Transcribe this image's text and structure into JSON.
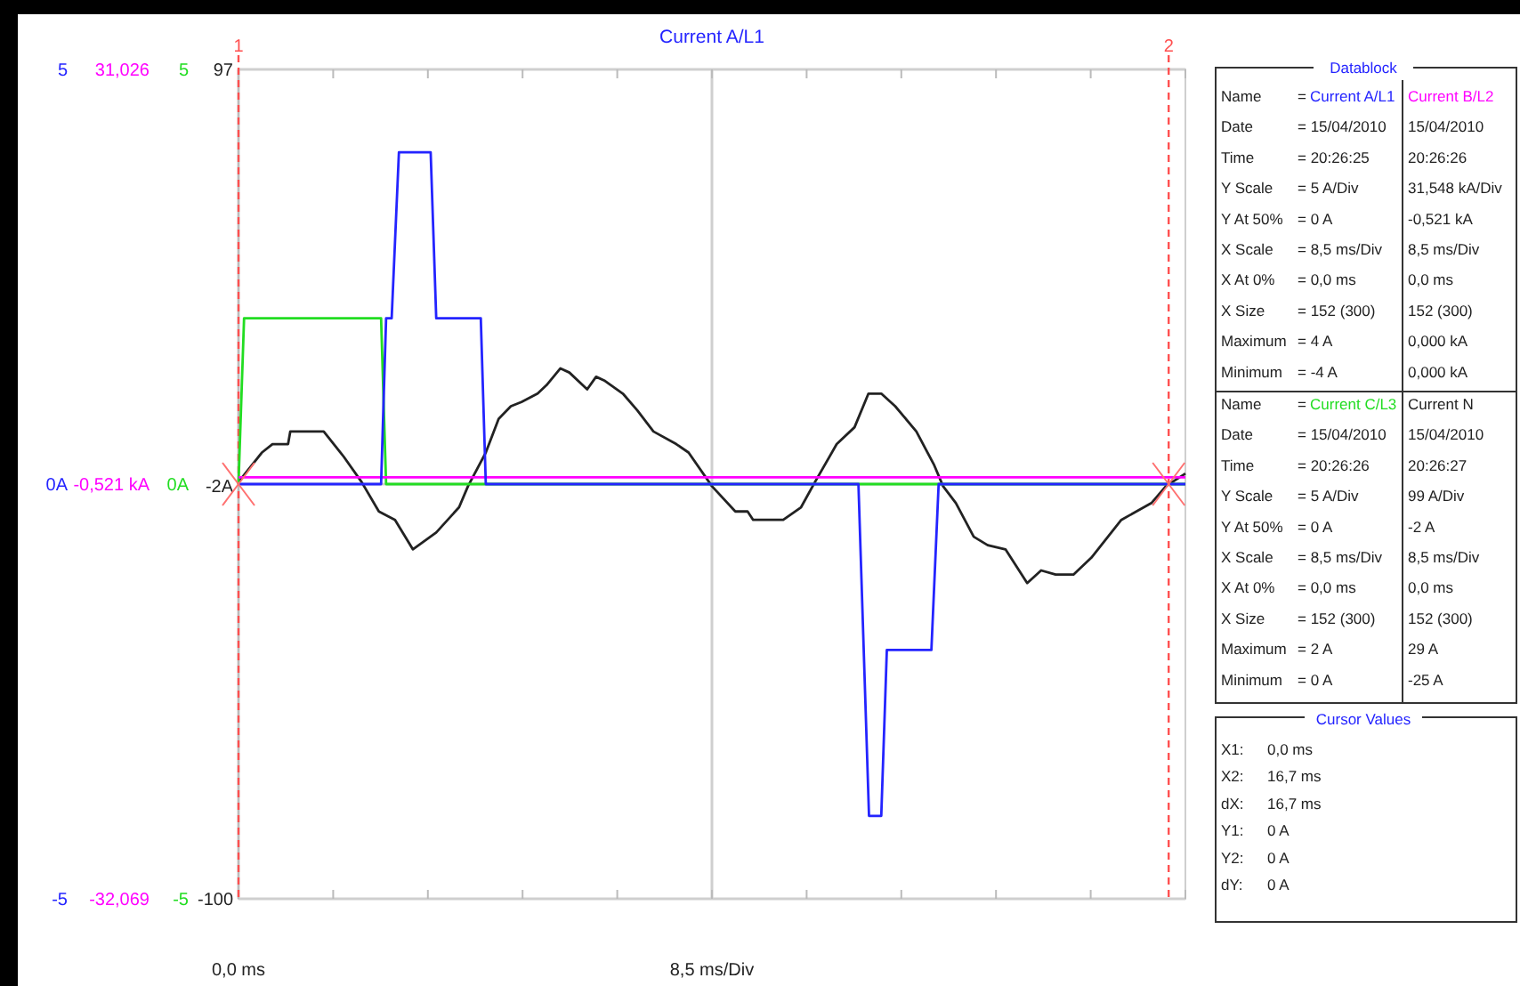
{
  "chart_data": {
    "type": "line",
    "title": "Current A/L1",
    "xlim": [
      0,
      17
    ],
    "xticks": [
      {
        "value": 0,
        "label": "0,0 ms"
      },
      {
        "value": 1.7,
        "label": null
      },
      {
        "value": 3.4,
        "label": null
      },
      {
        "value": 5.1,
        "label": null
      },
      {
        "value": 6.8,
        "label": null
      },
      {
        "value": 8.5,
        "label": "8,5 ms/Div"
      },
      {
        "value": 10.2,
        "label": null
      },
      {
        "value": 11.9,
        "label": null
      },
      {
        "value": 13.6,
        "label": null
      },
      {
        "value": 15.3,
        "label": null
      },
      {
        "value": 17,
        "label": null
      }
    ],
    "ylim": [
      -5,
      5
    ],
    "yticks": [
      -5,
      {
        "value": 0,
        "label": "0A"
      },
      5
    ],
    "y2lim": [
      -32.069,
      31.026
    ],
    "y2ticks": [
      {
        "value": -32.069,
        "label": "-32,069"
      },
      {
        "value": -0.521,
        "label": "-0,521 kA"
      },
      {
        "value": 31.026,
        "label": "31,026"
      }
    ],
    "y3lim": [
      -100,
      97
    ],
    "y3ticks": [
      -100,
      {
        "value": -2,
        "label": "-2A"
      },
      97
    ],
    "grid": true,
    "legend": "right",
    "series": [
      {
        "name": "Current A/L1",
        "color": "#2424ff",
        "axis": "y",
        "x": [
          0,
          2.56,
          2.65,
          2.75,
          2.88,
          3.45,
          3.55,
          4.35,
          4.44,
          11.13,
          11.32,
          11.54,
          11.64,
          12.44,
          12.57,
          17
        ],
        "values": [
          0,
          0,
          2,
          2,
          4,
          4,
          2,
          2,
          0,
          0,
          -4,
          -4,
          -2,
          -2,
          0,
          0
        ]
      },
      {
        "name": "Current B/L2",
        "color": "#ff00ff",
        "axis": "y2",
        "x": [
          0,
          17
        ],
        "values": [
          0,
          0
        ]
      },
      {
        "name": "Current C/L3",
        "color": "#22dd22",
        "axis": "y",
        "x": [
          0,
          0.1,
          2.56,
          2.65,
          17
        ],
        "values": [
          0,
          2,
          2,
          0,
          0
        ]
      },
      {
        "name": "Current N",
        "color": "#222222",
        "axis": "y3",
        "x": [
          0,
          0.42,
          0.61,
          0.89,
          0.93,
          1.53,
          1.89,
          2.21,
          2.52,
          2.81,
          3.13,
          3.55,
          3.96,
          4.12,
          4.44,
          4.67,
          4.89,
          5.08,
          5.37,
          5.53,
          5.78,
          5.94,
          6.26,
          6.42,
          6.58,
          6.9,
          7.16,
          7.45,
          7.86,
          8.08,
          8.5,
          8.92,
          9.14,
          9.24,
          9.78,
          10.1,
          10.35,
          10.74,
          11.06,
          11.31,
          11.54,
          11.79,
          12.17,
          12.49,
          12.65,
          12.88,
          13.2,
          13.45,
          13.77,
          14.16,
          14.41,
          14.67,
          14.99,
          15.31,
          15.85,
          16.39,
          16.65,
          17
        ],
        "values": [
          -1,
          6,
          8,
          8,
          11,
          11,
          5,
          -1,
          -8,
          -10,
          -17,
          -13,
          -7,
          -2,
          6,
          14,
          17,
          18,
          20,
          22,
          26,
          25,
          21,
          24,
          23,
          20,
          16,
          11,
          8,
          6,
          -2,
          -8,
          -8,
          -10,
          -10,
          -7,
          -1,
          8,
          12,
          20,
          20,
          17,
          11,
          3,
          -2,
          -6,
          -14,
          -16,
          -17,
          -25,
          -22,
          -23,
          -23,
          -19,
          -10,
          -6,
          -2,
          1
        ]
      }
    ],
    "ref_lines": [
      {
        "axis": "x",
        "value": 0,
        "color": "#ff5050",
        "line_style": "dashed"
      },
      {
        "axis": "x",
        "value": 16.7,
        "color": "#ff5050",
        "line_style": "dashed"
      }
    ],
    "annotations": [
      "Datablock",
      "Name",
      "=",
      "Date",
      "= 15/04/2010",
      "15/04/2010",
      "Time",
      "= 20:26:25",
      "20:26:26",
      "Y Scale",
      "= 5 A/Div",
      "31,548 kA/Div",
      "Y At 50%",
      "= 0 A",
      "-0,521 kA",
      "X Scale",
      "= 8,5 ms/Div",
      "8,5 ms/Div",
      "X At 0%",
      "= 0,0 ms",
      "0,0 ms",
      "X Size",
      "= 152 (300)",
      "152 (300)",
      "Maximum",
      "= 4 A",
      "0,000 kA",
      "Minimum",
      "= -4 A",
      "0,000 kA",
      "Name",
      "=",
      "Date",
      "= 15/04/2010",
      "15/04/2010",
      "Time",
      "= 20:26:26",
      "20:26:27",
      "Y Scale",
      "= 5 A/Div",
      "99 A/Div",
      "Y At 50%",
      "= 0 A",
      "-2 A",
      "X Scale",
      "= 8,5 ms/Div",
      "8,5 ms/Div",
      "X At 0%",
      "= 0,0 ms",
      "0,0 ms",
      "X Size",
      "= 152 (300)",
      "152 (300)",
      "Maximum",
      "= 2 A",
      "29 A",
      "Minimum",
      "= 0 A",
      "-25 A",
      "Cursor Values",
      "X1:",
      "0,0 ms",
      "X2:",
      "16,7 ms",
      "dX:",
      "16,7 ms",
      "Y1:",
      "0 A",
      "Y2:",
      "0 A",
      "dY:",
      "0 A",
      {
        "text": "1",
        "x": 0,
        "y": 5
      },
      {
        "text": "2",
        "x": 16.7,
        "y": 5
      },
      "5",
      "0A",
      "-5"
    ]
  }
}
